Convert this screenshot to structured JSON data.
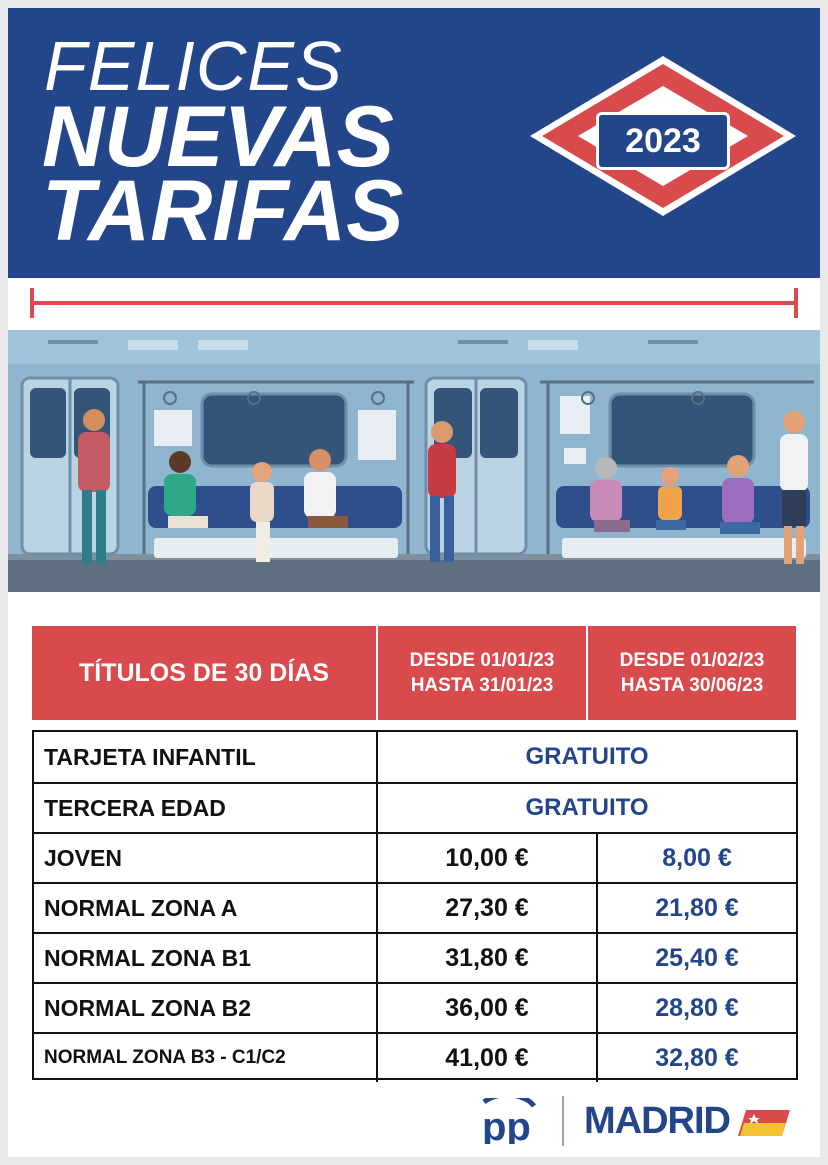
{
  "header": {
    "line1": "FELICES",
    "line2": "NUEVAS",
    "line3": "TARIFAS",
    "year": "2023"
  },
  "table": {
    "title": "TÍTULOS DE 30 DÍAS",
    "period1": {
      "from": "DESDE 01/01/23",
      "to": "HASTA 31/01/23"
    },
    "period2": {
      "from": "DESDE 01/02/23",
      "to": "HASTA 30/06/23"
    },
    "free_rows": [
      {
        "label": "TARJETA INFANTIL",
        "value": "GRATUITO"
      },
      {
        "label": "TERCERA EDAD",
        "value": "GRATUITO"
      }
    ],
    "price_rows": [
      {
        "label": "JOVEN",
        "price1": "10,00 €",
        "price2": "8,00 €"
      },
      {
        "label": "NORMAL ZONA A",
        "price1": "27,30 €",
        "price2": "21,80 €"
      },
      {
        "label": "NORMAL ZONA B1",
        "price1": "31,80 €",
        "price2": "25,40 €"
      },
      {
        "label": "NORMAL ZONA B2",
        "price1": "36,00 €",
        "price2": "28,80 €"
      },
      {
        "label": "NORMAL ZONA B3 - C1/C2",
        "price1": "41,00 €",
        "price2": "32,80 €"
      }
    ]
  },
  "footer": {
    "party_logo_text": "pp",
    "region": "MADRID"
  },
  "colors": {
    "brand_blue": "#23458a",
    "accent_red": "#d94a4d",
    "white": "#ffffff"
  }
}
